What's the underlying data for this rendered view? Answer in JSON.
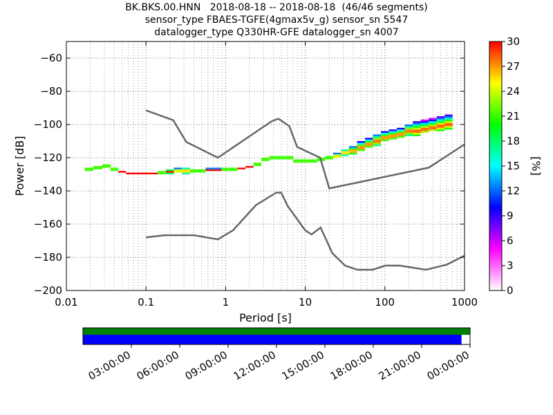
{
  "chart_data": {
    "type": "heatmap",
    "title_lines": [
      "BK.BKS.00.HNN   2018-08-18 -- 2018-08-18  (46/46 segments)",
      "sensor_type FBAES-TGFE(4gmax5v_g) sensor_sn 5547",
      "datalogger_type Q330HR-GFE datalogger_sn 4007"
    ],
    "xlabel": "Period [s]",
    "ylabel": "Power [dB]",
    "x_scale": "log",
    "xlim": [
      0.01,
      1000
    ],
    "ylim": [
      -200,
      -50
    ],
    "x_ticks": [
      {
        "v": 0.01,
        "label": "0.01"
      },
      {
        "v": 0.1,
        "label": "0.1"
      },
      {
        "v": 1,
        "label": "1"
      },
      {
        "v": 10,
        "label": "10"
      },
      {
        "v": 100,
        "label": "100"
      },
      {
        "v": 1000,
        "label": "1000"
      }
    ],
    "y_ticks": [
      {
        "v": -60,
        "label": "−60"
      },
      {
        "v": -80,
        "label": "−80"
      },
      {
        "v": -100,
        "label": "−100"
      },
      {
        "v": -120,
        "label": "−120"
      },
      {
        "v": -140,
        "label": "−140"
      },
      {
        "v": -160,
        "label": "−160"
      },
      {
        "v": -180,
        "label": "−180"
      },
      {
        "v": -200,
        "label": "−200"
      }
    ],
    "grid": true,
    "colorbar": {
      "label": "[%]",
      "range": [
        0,
        30
      ],
      "ticks": [
        {
          "v": 0,
          "label": "0"
        },
        {
          "v": 3,
          "label": "3"
        },
        {
          "v": 6,
          "label": "6"
        },
        {
          "v": 9,
          "label": "9"
        },
        {
          "v": 12,
          "label": "12"
        },
        {
          "v": 15,
          "label": "15"
        },
        {
          "v": 18,
          "label": "18"
        },
        {
          "v": 21,
          "label": "21"
        },
        {
          "v": 24,
          "label": "24"
        },
        {
          "v": 27,
          "label": "27"
        },
        {
          "v": 30,
          "label": "30"
        }
      ],
      "colors": [
        "#ffffff",
        "#ff00ff",
        "#0000ff",
        "#00ffff",
        "#00ff00",
        "#ffff00",
        "#ff0000"
      ]
    },
    "noise_models": [
      {
        "period": [
          0.1,
          0.17,
          0.4,
          0.8,
          1.24,
          2.4,
          4.3,
          5.0,
          6.0,
          10.0,
          12.0,
          15.6,
          21.9,
          31.6,
          45.0,
          70.0,
          101.0,
          154.0,
          328.0,
          600.0,
          1000.0
        ],
        "power": [
          -168.0,
          -166.7,
          -166.7,
          -169.2,
          -163.7,
          -148.6,
          -141.1,
          -141.1,
          -149.0,
          -163.8,
          -166.2,
          -162.1,
          -177.5,
          -185.0,
          -187.5,
          -187.5,
          -185.0,
          -185.0,
          -187.5,
          -184.4,
          -179.0
        ]
      },
      {
        "period": [
          0.1,
          0.22,
          0.32,
          0.8,
          3.8,
          4.6,
          6.3,
          7.9,
          15.4,
          20.0,
          354.8,
          1000.0
        ],
        "power": [
          -91.5,
          -97.4,
          -110.5,
          -120.0,
          -98.0,
          -96.5,
          -101.0,
          -113.5,
          -120.0,
          -138.5,
          -126.0,
          -112.0
        ]
      }
    ],
    "psd_bands": [
      {
        "period": [
          0.019,
          0.025,
          0.032,
          0.04,
          0.05,
          0.063,
          0.079,
          0.1,
          0.126,
          0.158,
          0.2,
          0.25,
          0.32,
          0.4,
          0.5,
          0.63,
          0.79,
          1.0,
          1.26,
          1.58,
          2.0,
          2.51,
          3.16,
          3.98,
          5.01,
          6.31,
          7.94,
          10.0,
          12.6,
          15.8,
          20.0,
          25.1,
          31.6,
          39.8,
          50.1,
          63.1,
          79.4,
          100.0,
          126.0,
          158.0,
          200.0,
          251.0,
          316.0,
          398.0,
          501.0,
          631.0
        ],
        "low": [
          -128,
          -127,
          -126,
          -128,
          -129,
          -130,
          -130,
          -130,
          -130,
          -130,
          -130,
          -129,
          -130,
          -129,
          -129,
          -128,
          -128,
          -128,
          -128,
          -127,
          -126,
          -125,
          -122,
          -121,
          -121,
          -121,
          -123,
          -123,
          -123,
          -122,
          -121,
          -120,
          -119,
          -118,
          -116,
          -114,
          -113,
          -110,
          -109,
          -108,
          -107,
          -107,
          -105,
          -104,
          -104,
          -103
        ],
        "high": [
          -126,
          -125,
          -124,
          -126,
          -128,
          -129,
          -129,
          -129,
          -129,
          -128,
          -127,
          -126,
          -126,
          -127,
          -127,
          -126,
          -126,
          -126,
          -126,
          -126,
          -125,
          -123,
          -120,
          -119,
          -119,
          -119,
          -121,
          -121,
          -121,
          -120,
          -119,
          -117,
          -115,
          -113,
          -110,
          -108,
          -106,
          -104,
          -103,
          -102,
          -100,
          -98,
          -97,
          -96,
          -95,
          -94
        ],
        "mode": [
          -127,
          -126,
          -125,
          -127,
          -128.5,
          -129.5,
          -129.5,
          -129.5,
          -129.5,
          -129,
          -128.5,
          -128,
          -128,
          -128,
          -128,
          -127.5,
          -127.5,
          -127,
          -127,
          -126.5,
          -125.5,
          -124,
          -121,
          -120,
          -120,
          -120,
          -122,
          -122,
          -122,
          -121,
          -120,
          -119,
          -117,
          -116,
          -114,
          -112,
          -110,
          -108,
          -107,
          -106,
          -104,
          -104,
          -103,
          -102,
          -101,
          -100
        ]
      }
    ],
    "timeline": {
      "tick_labels": [
        "03:00:00",
        "06:00:00",
        "09:00:00",
        "12:00:00",
        "15:00:00",
        "18:00:00",
        "21:00:00",
        "00:00:00"
      ],
      "tick_fractions": [
        0.125,
        0.25,
        0.375,
        0.5,
        0.625,
        0.75,
        0.875,
        1.0
      ],
      "data_color": "#008000",
      "coverage_color": "#0000ff",
      "coverage_fraction": 0.978
    }
  }
}
